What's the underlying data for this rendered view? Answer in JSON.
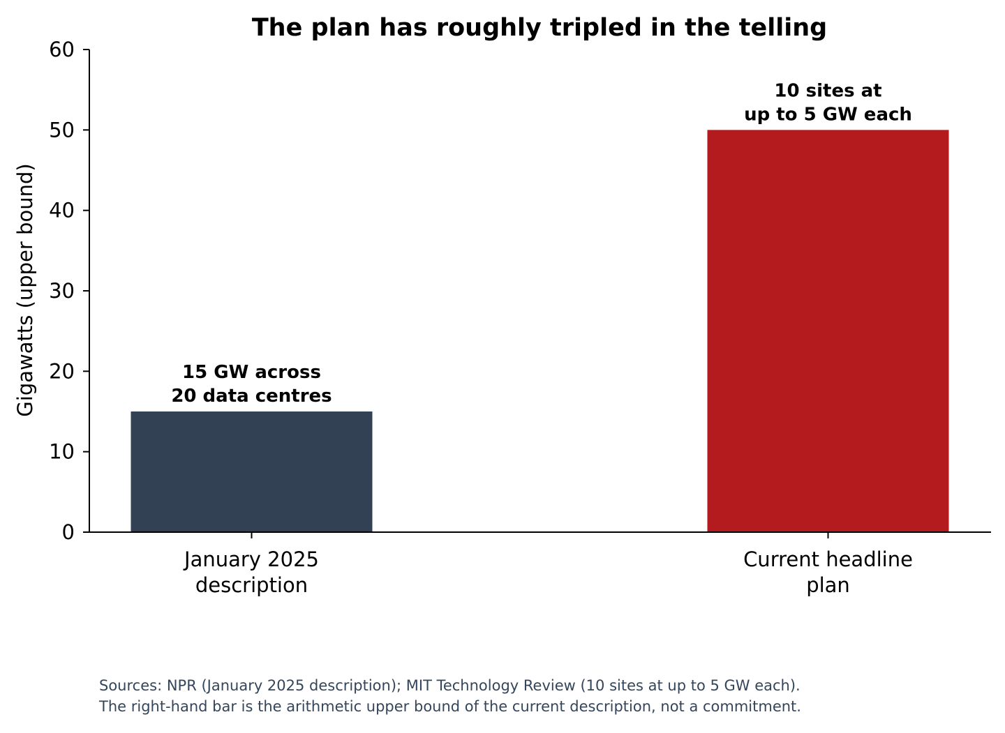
{
  "chart_data": {
    "type": "bar",
    "title": "The plan has roughly tripled in the telling",
    "ylabel": "Gigawatts (upper bound)",
    "xlabel": "",
    "ylim": [
      0,
      60
    ],
    "yticks": [
      0,
      10,
      20,
      30,
      40,
      50,
      60
    ],
    "categories": [
      [
        "January 2025",
        "description"
      ],
      [
        "Current headline",
        "plan"
      ]
    ],
    "values": [
      15,
      50
    ],
    "colors": [
      "#334155",
      "#b31b1e"
    ],
    "bar_labels": [
      [
        "15 GW across",
        "20 data centres"
      ],
      [
        "10 sites at",
        "up to 5 GW each"
      ]
    ],
    "grid": false,
    "legend": "none"
  },
  "notes": [
    "Sources: NPR (January 2025 description); MIT Technology Review (10 sites at up to 5 GW each).",
    "The right-hand bar is the arithmetic upper bound of the current description, not a commitment."
  ]
}
